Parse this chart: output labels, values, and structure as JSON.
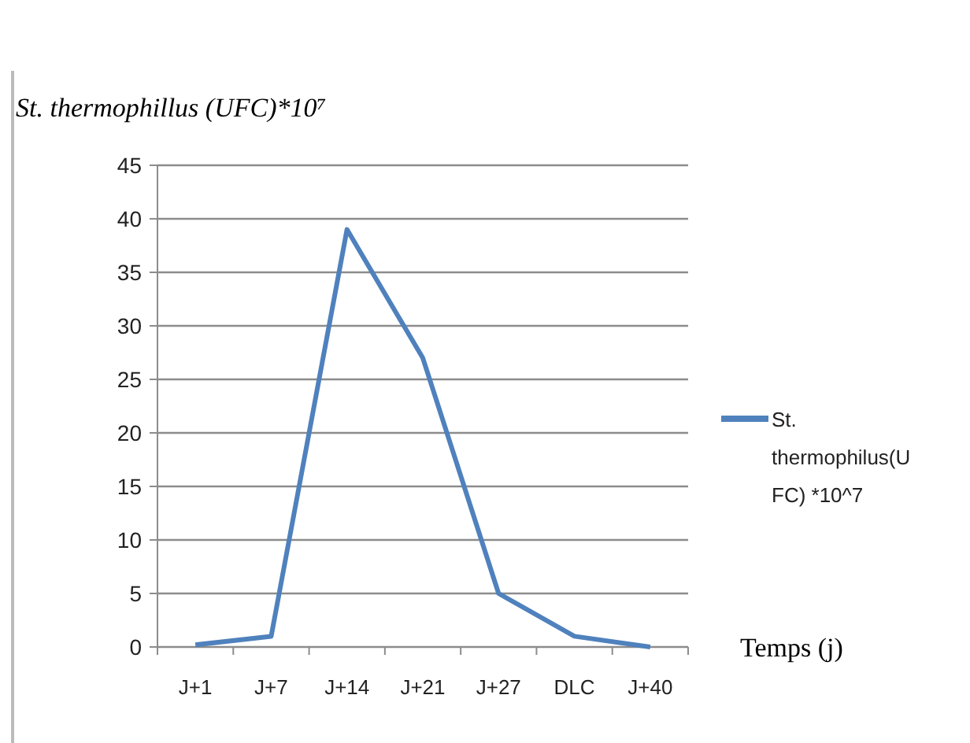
{
  "chart_data": {
    "type": "line",
    "ylabel": "St. thermophillus (UFC)*10⁷",
    "xlabel": "Temps (j)",
    "categories": [
      "J+1",
      "J+7",
      "J+14",
      "J+21",
      "J+27",
      "DLC",
      "J+40"
    ],
    "series": [
      {
        "name": "St. thermophilus(UFC) *10^7",
        "color": "#4f81bd",
        "values": [
          0.2,
          1,
          39,
          27,
          5,
          1,
          0
        ]
      }
    ],
    "ylim": [
      0,
      45
    ],
    "yticks": [
      0,
      5,
      10,
      15,
      20,
      25,
      30,
      35,
      40,
      45
    ],
    "grid": "y",
    "legend": "right",
    "marker": "none"
  }
}
